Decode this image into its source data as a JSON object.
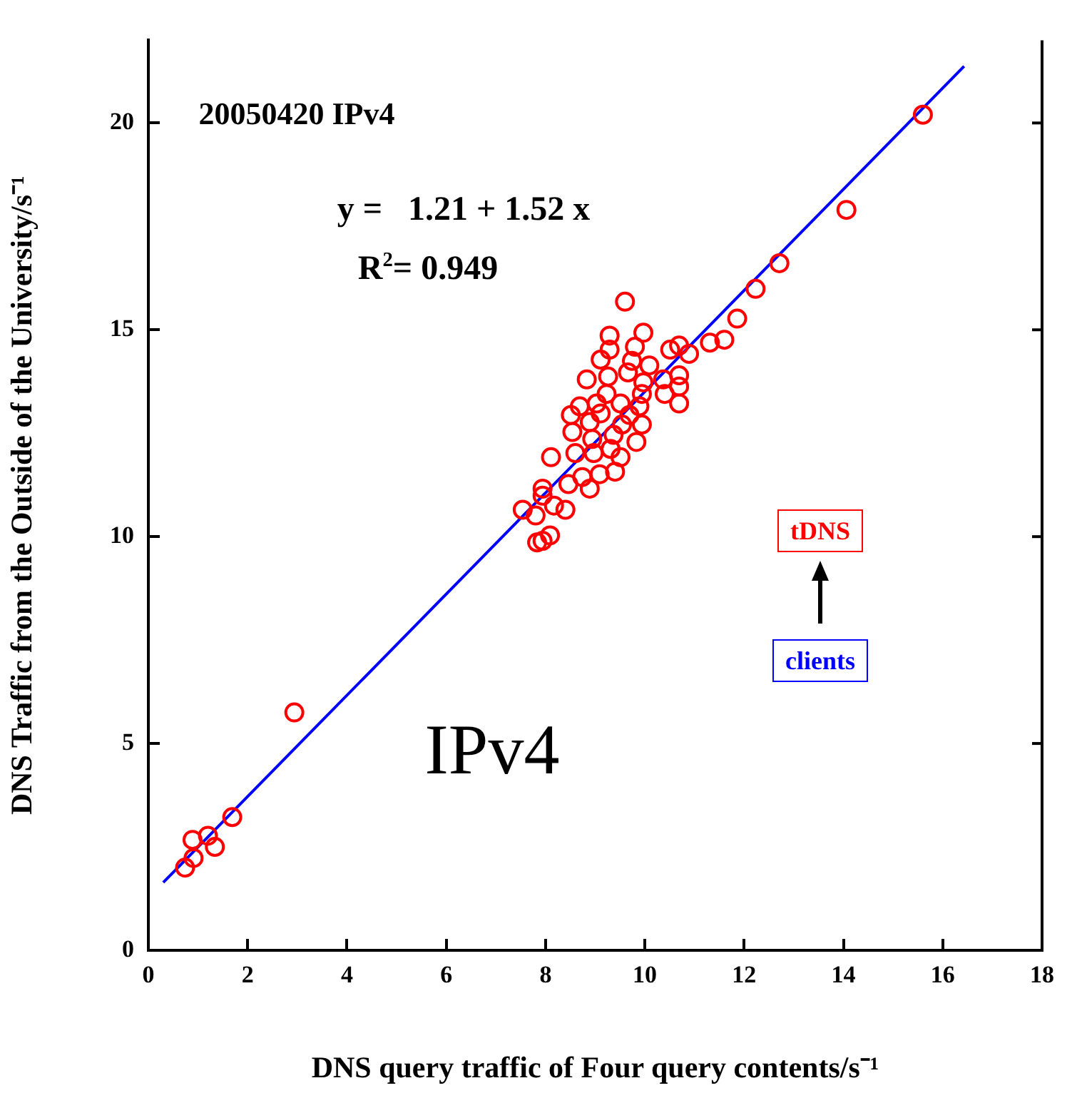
{
  "chart_data": {
    "type": "scatter",
    "xlabel": "DNS query traffic of Four query contents/s⁻¹",
    "ylabel": "DNS Traffic from the Outside of the University/s⁻¹",
    "xlim": [
      0,
      18
    ],
    "xticks": [
      0,
      2,
      4,
      6,
      8,
      10,
      12,
      14,
      16,
      18
    ],
    "ylim": [
      0,
      22
    ],
    "yticks": [
      0,
      5,
      10,
      15,
      20
    ],
    "grid": false,
    "legend": false,
    "annotations": [
      "20050420 IPv4",
      "y =   1.21 + 1.52 x",
      "R$^{2}$= 0.949",
      "IPv4",
      "tDNS",
      "clients"
    ],
    "series": [
      {
        "color": "#ff0000",
        "marker": "circle",
        "x": [
          0.74,
          0.91,
          0.89,
          1.2,
          1.34,
          1.69,
          2.94,
          9.6,
          9.29,
          9.97,
          9.29,
          9.11,
          9.8,
          9.74,
          10.09,
          10.51,
          10.69,
          10.89,
          11.31,
          11.6,
          11.86,
          12.23,
          12.71,
          14.06,
          15.6,
          8.83,
          9.26,
          9.66,
          9.97,
          10.37,
          10.69,
          10.69,
          10.4,
          10.69,
          9.23,
          9.51,
          9.94,
          9.89,
          8.69,
          8.51,
          8.89,
          9.11,
          9.54,
          9.94,
          8.54,
          8.94,
          9.37,
          9.83,
          8.6,
          8.97,
          9.31,
          9.51,
          8.11,
          8.74,
          9.09,
          9.4,
          8.46,
          8.89,
          7.94,
          7.94,
          7.54,
          8.17,
          8.4,
          7.8,
          8.09,
          7.94,
          7.83,
          9.69,
          9.03
        ],
        "values": [
          2.0,
          2.23,
          2.67,
          2.77,
          2.5,
          3.22,
          5.75,
          15.68,
          14.86,
          14.93,
          14.52,
          14.28,
          14.59,
          14.25,
          14.14,
          14.52,
          14.62,
          14.42,
          14.69,
          14.76,
          15.27,
          15.99,
          16.61,
          17.9,
          20.2,
          13.8,
          13.87,
          13.97,
          13.73,
          13.8,
          13.9,
          13.63,
          13.45,
          13.22,
          13.45,
          13.22,
          13.45,
          13.15,
          13.15,
          12.94,
          12.77,
          12.98,
          12.71,
          12.71,
          12.53,
          12.36,
          12.46,
          12.29,
          12.02,
          12.02,
          12.12,
          11.92,
          11.92,
          11.44,
          11.51,
          11.57,
          11.27,
          11.16,
          11.16,
          10.99,
          10.65,
          10.75,
          10.65,
          10.51,
          10.03,
          9.9,
          9.86,
          12.94,
          13.22
        ]
      },
      {
        "type": "line",
        "color": "#0000ff",
        "marker": "none",
        "x": [
          0.3,
          16.43
        ],
        "values": [
          1.64,
          21.37
        ]
      }
    ]
  }
}
